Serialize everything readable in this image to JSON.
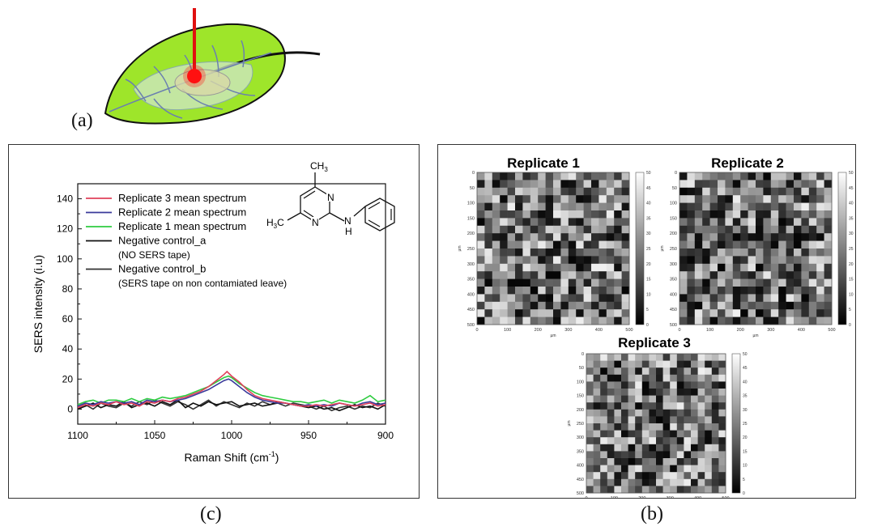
{
  "labels": {
    "a": "(a)",
    "b": "(b)",
    "c": "(c)"
  },
  "molecule": {
    "ch3_top": "CH",
    "ch3_sub": "3",
    "h3c_left": "H",
    "h3c_sub": "3",
    "h3c_c": "C",
    "n1": "N",
    "n2": "N",
    "nh_n": "N",
    "nh_h": "H"
  },
  "chart_data": [
    {
      "type": "line",
      "xlabel": "Raman Shift (cm",
      "xlabel_sup": "-1",
      "xlabel_close": ")",
      "ylabel": "SERS intensity (i.u)",
      "xlim": [
        1100,
        900
      ],
      "ylim": [
        -10,
        150
      ],
      "x_ticks": [
        1100,
        1050,
        1000,
        950,
        900
      ],
      "y_ticks": [
        0,
        20,
        40,
        60,
        80,
        100,
        120,
        140
      ],
      "legend_placement": "top-left",
      "series": [
        {
          "name": "Replicate 3 mean spectrum",
          "color": "#e0405a",
          "x": [
            1100,
            1095,
            1090,
            1085,
            1080,
            1075,
            1070,
            1065,
            1060,
            1055,
            1050,
            1045,
            1040,
            1035,
            1030,
            1025,
            1020,
            1015,
            1010,
            1005,
            1003,
            1000,
            995,
            990,
            985,
            980,
            975,
            970,
            965,
            960,
            955,
            950,
            945,
            940,
            935,
            930,
            925,
            920,
            915,
            910,
            905,
            900
          ],
          "y": [
            1,
            3,
            2,
            4,
            3,
            5,
            3,
            4,
            2,
            5,
            4,
            6,
            5,
            7,
            8,
            10,
            12,
            15,
            19,
            23,
            25,
            22,
            18,
            13,
            9,
            7,
            6,
            5,
            4,
            3,
            2,
            2,
            3,
            2,
            3,
            4,
            3,
            2,
            3,
            4,
            2,
            3
          ]
        },
        {
          "name": "Replicate 2 mean spectrum",
          "color": "#3a3a9a",
          "x": [
            1100,
            1095,
            1090,
            1085,
            1080,
            1075,
            1070,
            1065,
            1060,
            1055,
            1050,
            1045,
            1040,
            1035,
            1030,
            1025,
            1020,
            1015,
            1010,
            1005,
            1002,
            1000,
            995,
            990,
            985,
            980,
            975,
            970,
            965,
            960,
            955,
            950,
            945,
            940,
            935,
            930,
            925,
            920,
            915,
            910,
            905,
            900
          ],
          "y": [
            2,
            4,
            3,
            5,
            4,
            5,
            4,
            5,
            3,
            6,
            5,
            6,
            5,
            6,
            7,
            9,
            11,
            13,
            16,
            19,
            20,
            19,
            15,
            11,
            8,
            6,
            5,
            4,
            4,
            3,
            2,
            3,
            2,
            3,
            2,
            4,
            3,
            2,
            4,
            5,
            3,
            4
          ]
        },
        {
          "name": "Replicate 1 mean spectrum",
          "color": "#2ecc40",
          "x": [
            1100,
            1095,
            1090,
            1085,
            1080,
            1075,
            1070,
            1065,
            1060,
            1055,
            1050,
            1045,
            1040,
            1035,
            1030,
            1025,
            1020,
            1015,
            1010,
            1005,
            1002,
            1000,
            995,
            990,
            985,
            980,
            975,
            970,
            965,
            960,
            955,
            950,
            945,
            940,
            935,
            930,
            925,
            920,
            915,
            910,
            905,
            900
          ],
          "y": [
            3,
            5,
            6,
            4,
            6,
            6,
            5,
            7,
            5,
            7,
            6,
            8,
            7,
            8,
            9,
            11,
            13,
            15,
            18,
            21,
            22,
            21,
            17,
            14,
            11,
            9,
            8,
            7,
            6,
            5,
            5,
            4,
            5,
            6,
            4,
            6,
            5,
            4,
            6,
            9,
            5,
            6
          ]
        },
        {
          "name": "Negative control_a",
          "color": "#111111",
          "x": [
            1100,
            1095,
            1090,
            1085,
            1080,
            1075,
            1070,
            1065,
            1060,
            1055,
            1050,
            1045,
            1040,
            1035,
            1030,
            1025,
            1020,
            1015,
            1010,
            1005,
            1000,
            995,
            990,
            985,
            980,
            975,
            970,
            965,
            960,
            955,
            950,
            945,
            940,
            935,
            930,
            925,
            920,
            915,
            910,
            905,
            900
          ],
          "y": [
            0,
            2,
            4,
            1,
            3,
            2,
            5,
            1,
            3,
            4,
            2,
            5,
            3,
            6,
            1,
            4,
            2,
            5,
            3,
            4,
            5,
            2,
            3,
            4,
            2,
            3,
            5,
            4,
            3,
            2,
            1,
            2,
            0,
            1,
            -1,
            1,
            3,
            1,
            2,
            0,
            3
          ]
        },
        {
          "name": "Negative control_b",
          "color": "#333333",
          "x": [
            1100,
            1095,
            1090,
            1085,
            1080,
            1075,
            1070,
            1065,
            1060,
            1055,
            1050,
            1045,
            1040,
            1035,
            1030,
            1025,
            1020,
            1015,
            1010,
            1005,
            1000,
            995,
            990,
            985,
            980,
            975,
            970,
            965,
            960,
            955,
            950,
            945,
            940,
            935,
            930,
            925,
            920,
            915,
            910,
            905,
            900
          ],
          "y": [
            1,
            3,
            0,
            4,
            2,
            1,
            4,
            2,
            5,
            3,
            6,
            4,
            2,
            5,
            3,
            0,
            3,
            6,
            2,
            5,
            3,
            1,
            4,
            2,
            5,
            3,
            4,
            2,
            4,
            3,
            2,
            0,
            2,
            -1,
            1,
            2,
            0,
            2,
            1,
            4,
            2
          ]
        }
      ],
      "legend_notes": [
        "(NO SERS tape)",
        "(SERS tape on non contamiated leave)"
      ]
    },
    {
      "type": "heatmap",
      "title": "Replicate 1",
      "x_ticks": [
        0,
        100,
        200,
        300,
        400,
        500
      ],
      "y_ticks": [
        0,
        50,
        100,
        150,
        200,
        250,
        300,
        350,
        400,
        450,
        500
      ],
      "axis_unit": "µm",
      "colorbar_ticks": [
        0,
        5,
        10,
        15,
        20,
        25,
        30,
        35,
        40,
        45,
        50
      ],
      "seed": 11
    },
    {
      "type": "heatmap",
      "title": "Replicate 2",
      "x_ticks": [
        0,
        100,
        200,
        300,
        400,
        500
      ],
      "y_ticks": [
        0,
        50,
        100,
        150,
        200,
        250,
        300,
        350,
        400,
        450,
        500
      ],
      "axis_unit": "µm",
      "colorbar_ticks": [
        0,
        5,
        10,
        15,
        20,
        25,
        30,
        35,
        40,
        45,
        50
      ],
      "seed": 23
    },
    {
      "type": "heatmap",
      "title": "Replicate 3",
      "x_ticks": [
        0,
        100,
        200,
        300,
        400,
        500
      ],
      "y_ticks": [
        0,
        50,
        100,
        150,
        200,
        250,
        300,
        350,
        400,
        450,
        500
      ],
      "axis_unit": "µm",
      "colorbar_ticks": [
        0,
        5,
        10,
        15,
        20,
        25,
        30,
        35,
        40,
        45,
        50
      ],
      "seed": 37
    }
  ]
}
